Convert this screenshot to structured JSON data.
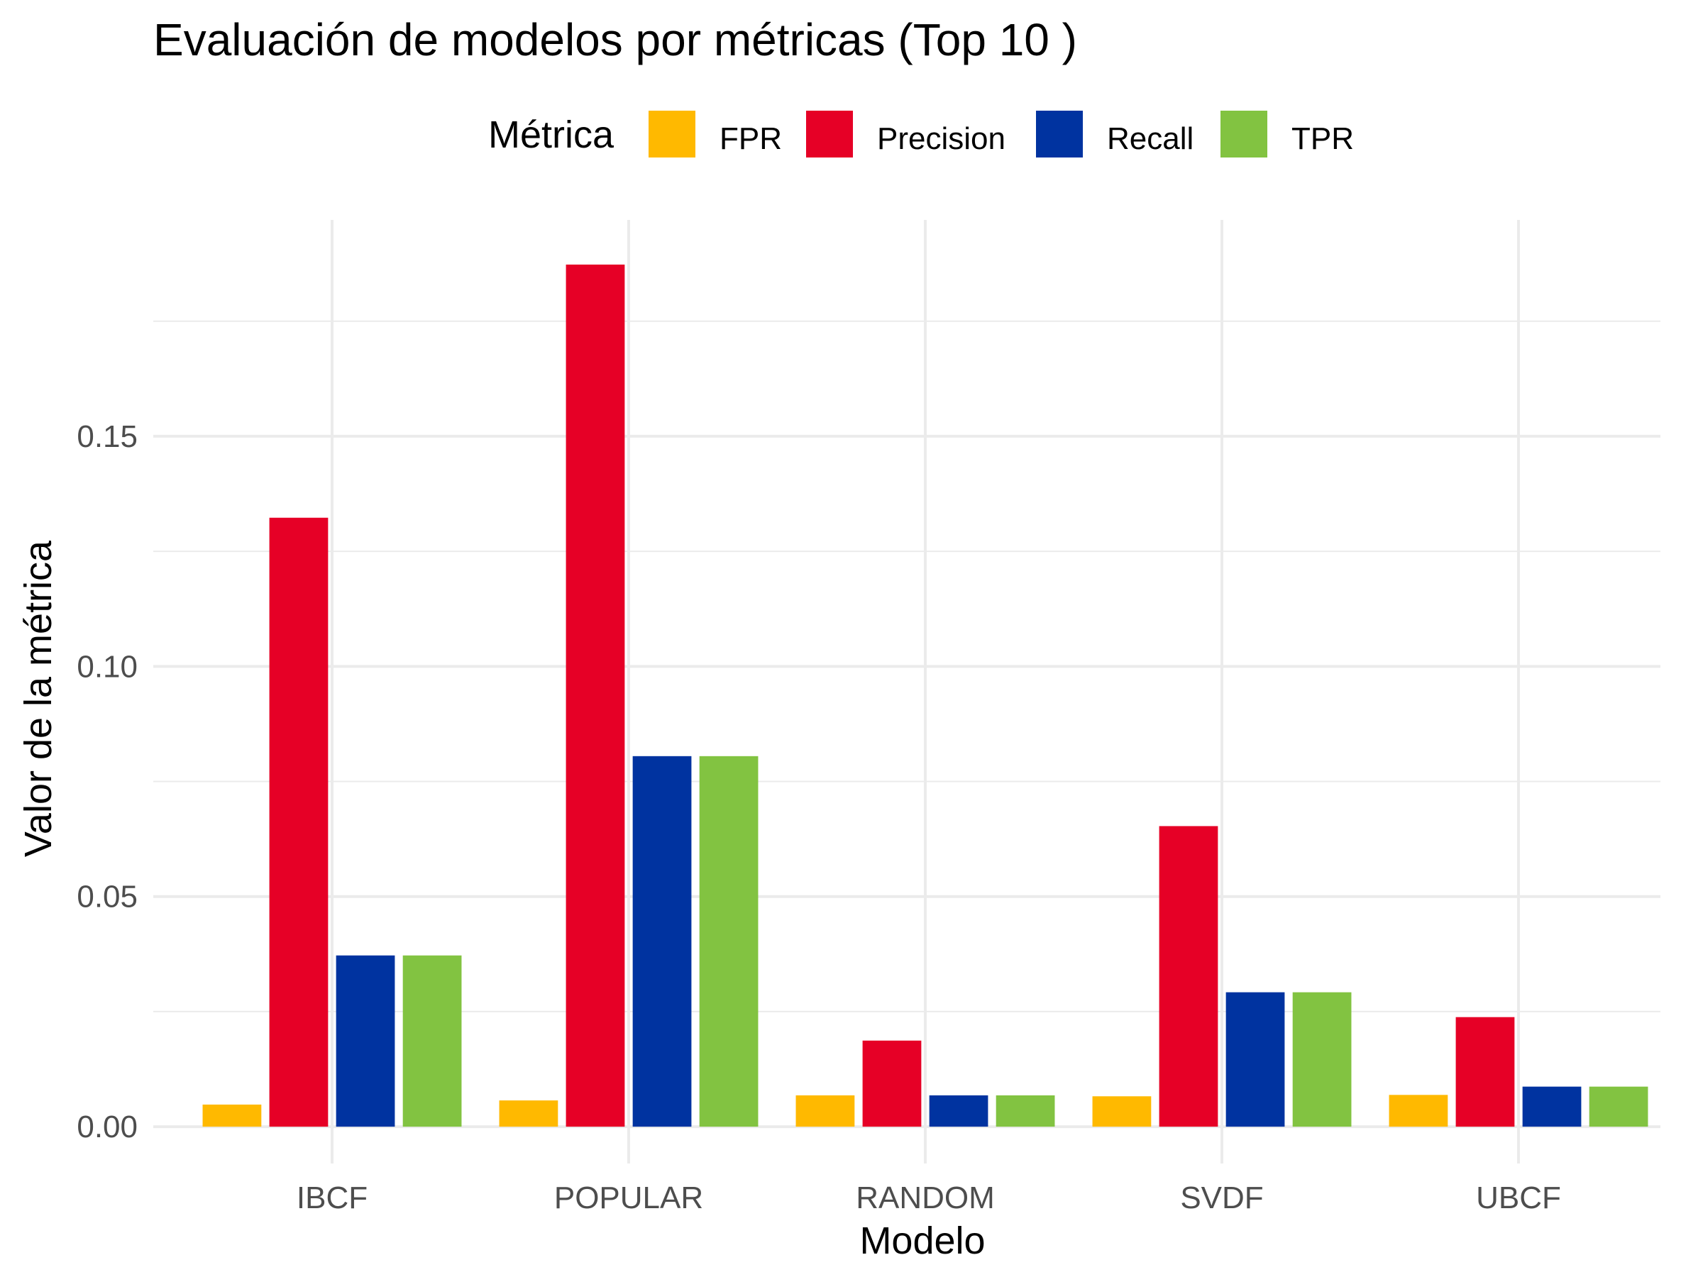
{
  "chart_data": {
    "type": "bar",
    "title": "Evaluación de modelos por métricas (Top 10 )",
    "xlabel": "Modelo",
    "ylabel": "Valor de la métrica",
    "legend_title": "Métrica",
    "legend_position": "top",
    "grid": true,
    "categories": [
      "IBCF",
      "POPULAR",
      "RANDOM",
      "SVDF",
      "UBCF"
    ],
    "ylim": [
      -0.008,
      0.197
    ],
    "yticks": [
      0.0,
      0.05,
      0.1,
      0.15
    ],
    "ytick_labels": [
      "0.00",
      "0.05",
      "0.10",
      "0.15"
    ],
    "series": [
      {
        "name": "FPR",
        "color": "#FFB900",
        "values": [
          0.0048,
          0.0057,
          0.0068,
          0.0066,
          0.0069
        ]
      },
      {
        "name": "Precision",
        "color": "#E60026",
        "values": [
          0.1323,
          0.1873,
          0.0187,
          0.0653,
          0.0238
        ]
      },
      {
        "name": "Recall",
        "color": "#0033A0",
        "values": [
          0.0372,
          0.0805,
          0.0068,
          0.0292,
          0.0087
        ]
      },
      {
        "name": "TPR",
        "color": "#82C341",
        "values": [
          0.0372,
          0.0805,
          0.0068,
          0.0292,
          0.0087
        ]
      }
    ]
  }
}
